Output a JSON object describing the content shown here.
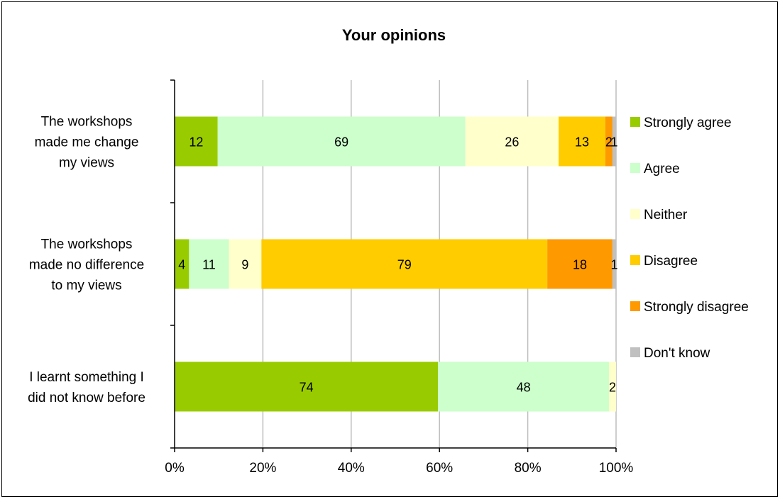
{
  "chart_data": {
    "type": "bar",
    "orientation": "horizontal",
    "stacked": "percent",
    "title": "Your opinions",
    "categories": [
      [
        "The workshops",
        "made me change",
        "my views"
      ],
      [
        "The workshops",
        "made no difference",
        "to my views"
      ],
      [
        "I learnt something I",
        "did not know before"
      ]
    ],
    "series": [
      {
        "name": "Strongly agree",
        "color": "#99cc00",
        "values": [
          12,
          4,
          74
        ]
      },
      {
        "name": "Agree",
        "color": "#ccffcc",
        "values": [
          69,
          11,
          48
        ]
      },
      {
        "name": "Neither",
        "color": "#ffffcc",
        "values": [
          26,
          9,
          2
        ]
      },
      {
        "name": "Disagree",
        "color": "#ffcc00",
        "values": [
          13,
          79,
          0
        ]
      },
      {
        "name": "Strongly disagree",
        "color": "#ff9900",
        "values": [
          2,
          18,
          0
        ]
      },
      {
        "name": "Don't know",
        "color": "#c0c0c0",
        "values": [
          1,
          1,
          0
        ]
      }
    ],
    "x_ticks": [
      "0%",
      "20%",
      "40%",
      "60%",
      "80%",
      "100%"
    ],
    "xlim": [
      0,
      100
    ],
    "grid": true,
    "legend": "right"
  }
}
